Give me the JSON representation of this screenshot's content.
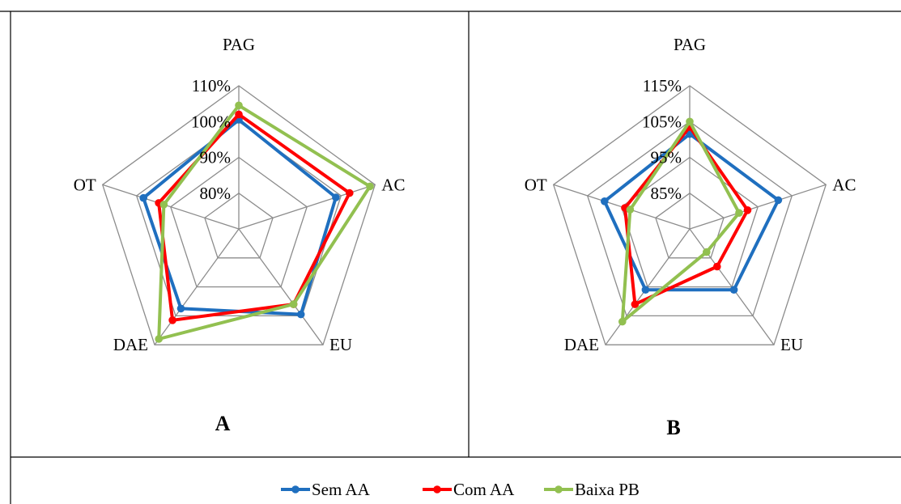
{
  "legend": [
    {
      "name": "Sem AA",
      "color": "#1f6fbf"
    },
    {
      "name": "Com AA",
      "color": "#ff0000"
    },
    {
      "name": "Baixa PB",
      "color": "#92c050"
    }
  ],
  "grid_color": "#8c8c8c",
  "chart_data": [
    {
      "type": "radar",
      "panel_label": "A",
      "categories": [
        "PAG",
        "AC",
        "EU",
        "DAE",
        "OT"
      ],
      "rmin": 70,
      "rmax": 110,
      "step": 10,
      "tick_labels": [
        "80%",
        "90%",
        "100%",
        "110%"
      ],
      "series": [
        {
          "name": "Sem AA",
          "values": [
            100.5,
            98.5,
            99.5,
            97.5,
            98.0
          ]
        },
        {
          "name": "Com AA",
          "values": [
            102.0,
            102.5,
            96.0,
            101.5,
            93.5
          ]
        },
        {
          "name": "Baixa PB",
          "values": [
            104.5,
            108.5,
            96.0,
            108.0,
            92.0
          ]
        }
      ]
    },
    {
      "type": "radar",
      "panel_label": "B",
      "categories": [
        "PAG",
        "AC",
        "EU",
        "DAE",
        "OT"
      ],
      "rmin": 75,
      "rmax": 115,
      "step": 10,
      "tick_labels": [
        "85%",
        "95%",
        "105%",
        "115%"
      ],
      "series": [
        {
          "name": "Sem AA",
          "values": [
            101.5,
            101.0,
            96.0,
            96.0,
            100.0
          ]
        },
        {
          "name": "Com AA",
          "values": [
            103.5,
            92.0,
            88.0,
            101.0,
            94.0
          ]
        },
        {
          "name": "Baixa PB",
          "values": [
            105.0,
            89.5,
            83.0,
            107.0,
            92.5
          ]
        }
      ]
    }
  ]
}
